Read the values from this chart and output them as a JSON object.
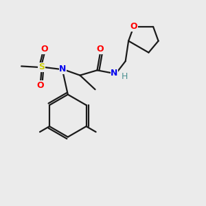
{
  "bg_color": "#ebebeb",
  "bond_color": "#1a1a1a",
  "colors": {
    "O": "#ff0000",
    "N": "#0000ee",
    "S": "#cccc00",
    "H": "#4a9090",
    "C": "#1a1a1a"
  },
  "lw": 1.6,
  "fontsize": 9
}
